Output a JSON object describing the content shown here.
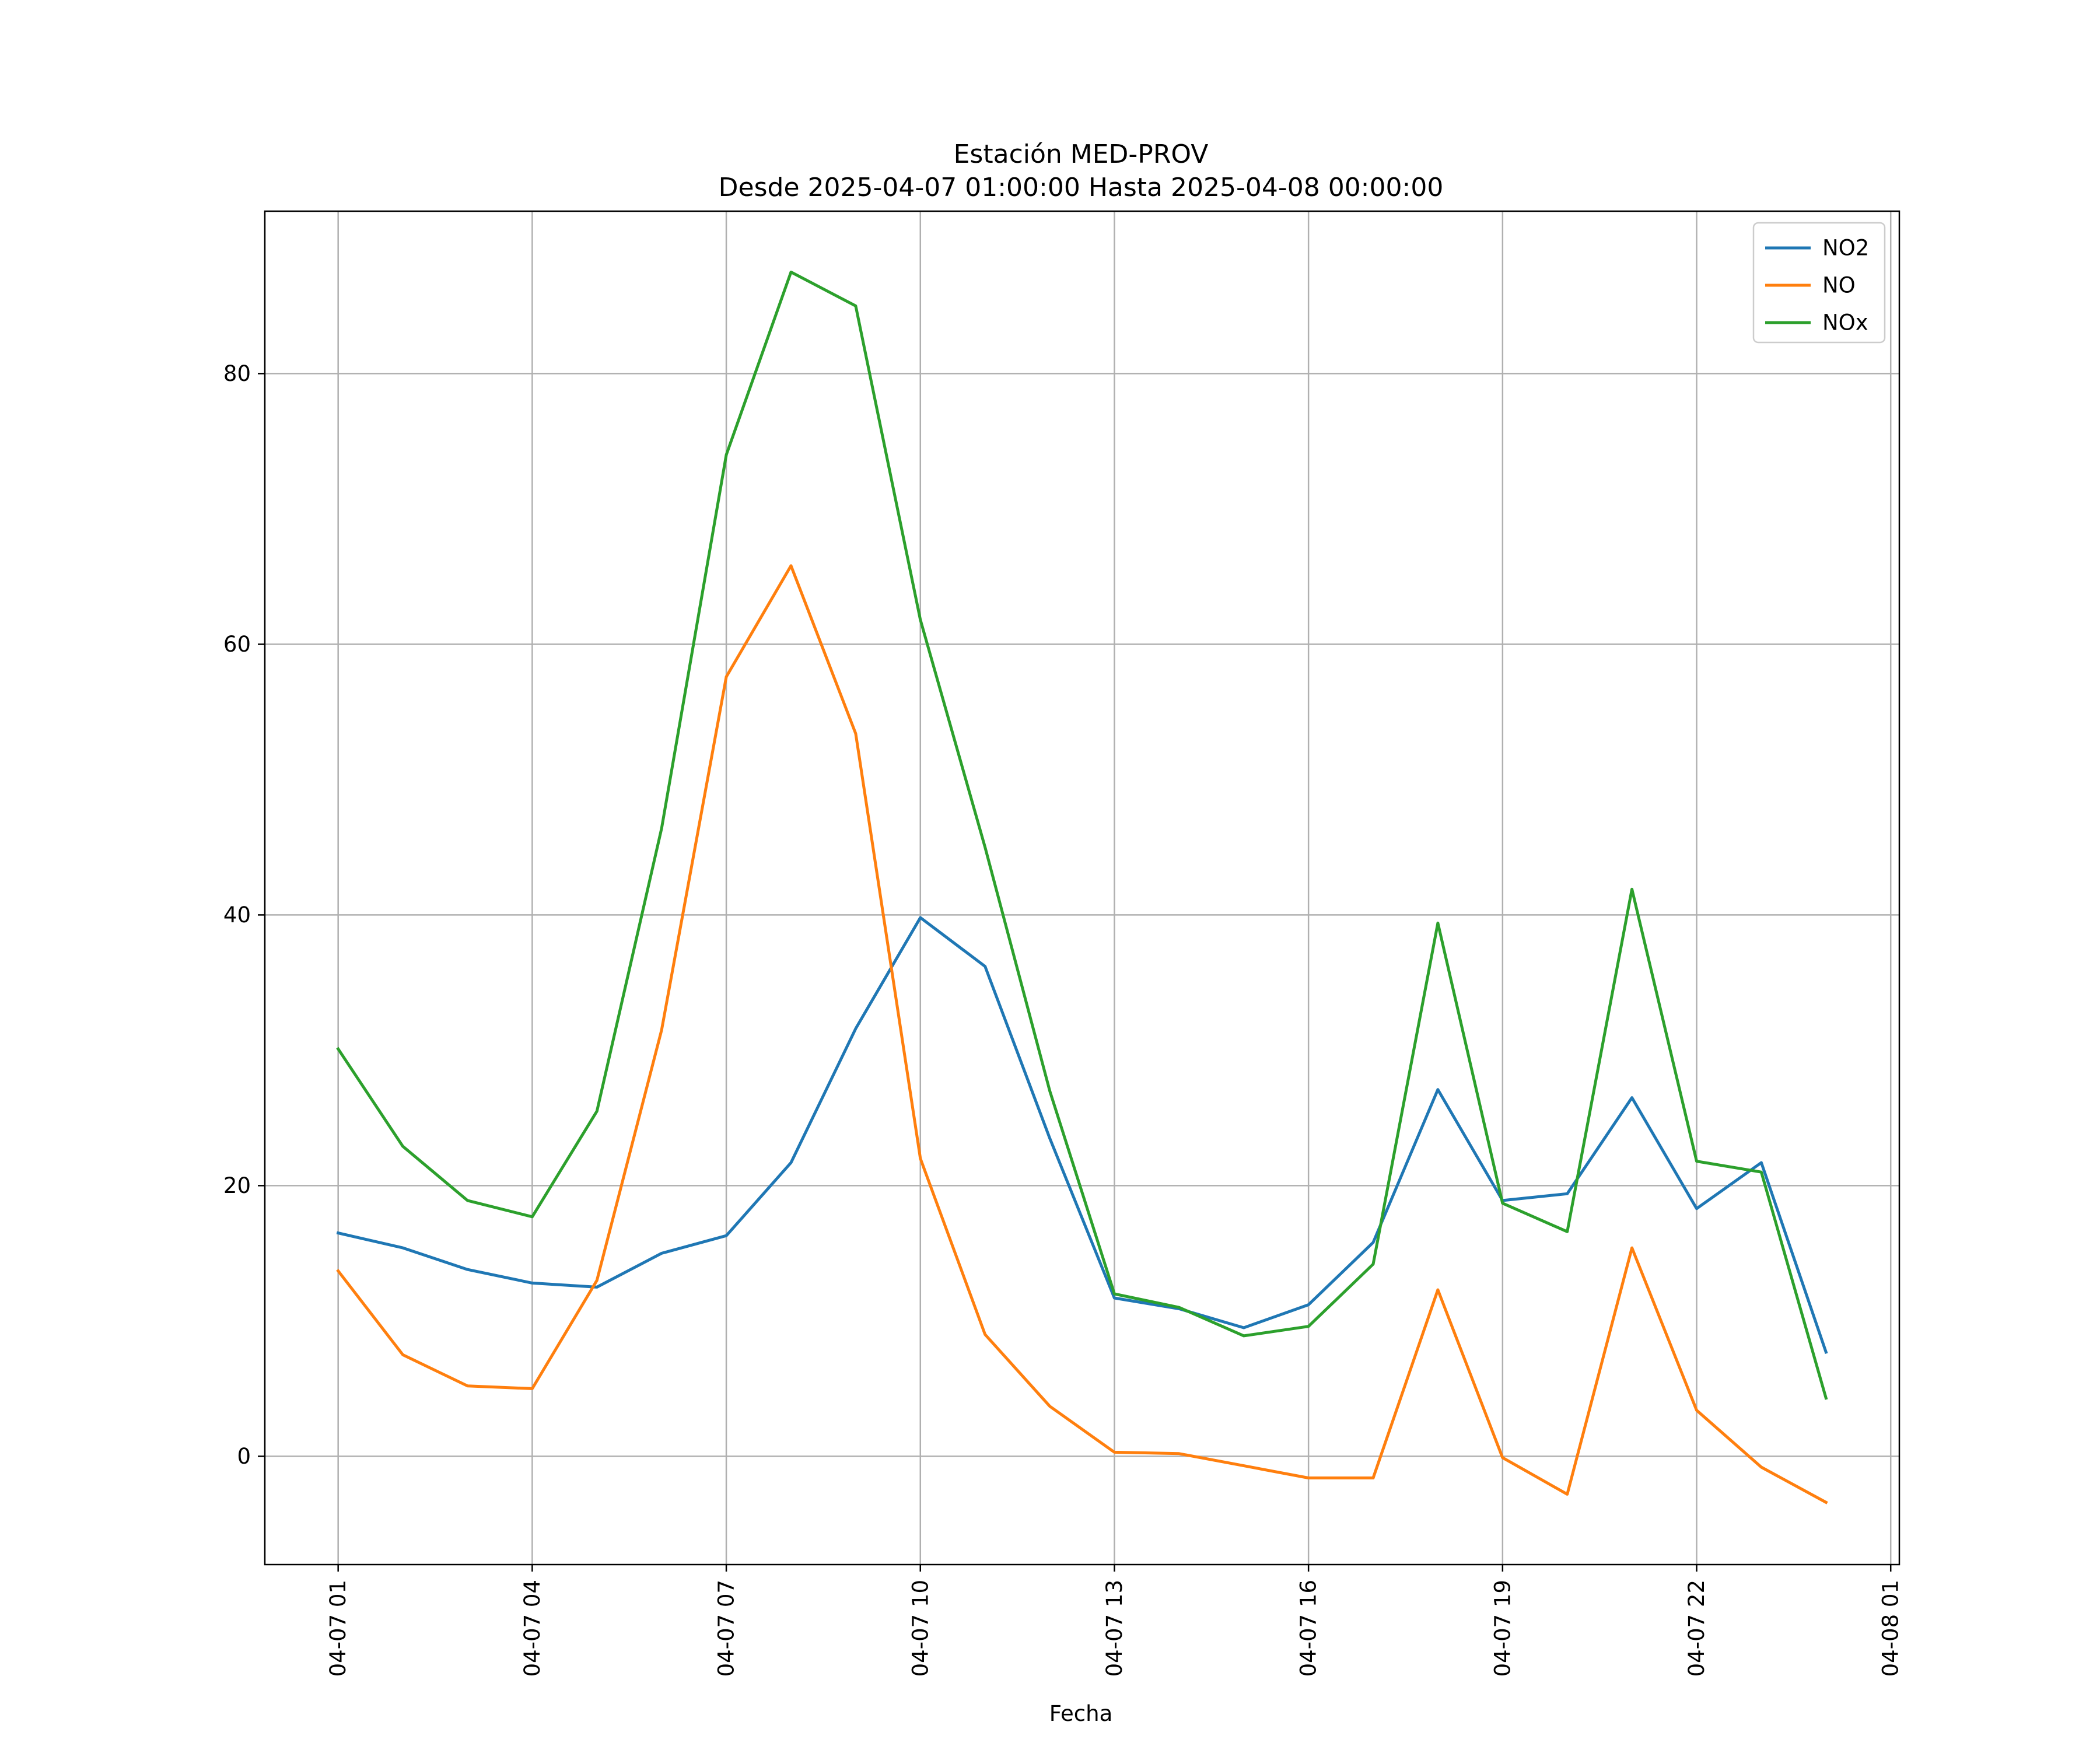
{
  "chart_data": {
    "type": "line",
    "title": "Estación MED-PROV",
    "subtitle": "Desde 2025-04-07 01:00:00 Hasta 2025-04-08 00:00:00",
    "xlabel": "Fecha",
    "ylabel": "",
    "x": [
      "2025-04-07 01:00",
      "2025-04-07 02:00",
      "2025-04-07 03:00",
      "2025-04-07 04:00",
      "2025-04-07 05:00",
      "2025-04-07 06:00",
      "2025-04-07 07:00",
      "2025-04-07 08:00",
      "2025-04-07 09:00",
      "2025-04-07 10:00",
      "2025-04-07 11:00",
      "2025-04-07 12:00",
      "2025-04-07 13:00",
      "2025-04-07 14:00",
      "2025-04-07 15:00",
      "2025-04-07 16:00",
      "2025-04-07 17:00",
      "2025-04-07 18:00",
      "2025-04-07 19:00",
      "2025-04-07 20:00",
      "2025-04-07 21:00",
      "2025-04-07 22:00",
      "2025-04-07 23:00",
      "2025-04-08 00:00"
    ],
    "xlim": [
      "2025-04-06 23:52",
      "2025-04-08 01:08"
    ],
    "ylim": [
      -8,
      92
    ],
    "xticks": [
      "2025-04-07 01:00",
      "2025-04-07 04:00",
      "2025-04-07 07:00",
      "2025-04-07 10:00",
      "2025-04-07 13:00",
      "2025-04-07 16:00",
      "2025-04-07 19:00",
      "2025-04-07 22:00",
      "2025-04-08 01:00"
    ],
    "xtick_labels": [
      "04-07 01",
      "04-07 04",
      "04-07 07",
      "04-07 10",
      "04-07 13",
      "04-07 16",
      "04-07 19",
      "04-07 22",
      "04-08 01"
    ],
    "yticks": [
      0,
      20,
      40,
      60,
      80
    ],
    "ytick_labels": [
      "0",
      "20",
      "40",
      "60",
      "80"
    ],
    "grid": true,
    "legend_position": "top-right",
    "series": [
      {
        "name": "NO2",
        "color": "#1f77b4",
        "values": [
          16.5,
          15.4,
          13.8,
          12.8,
          12.5,
          15.0,
          16.3,
          21.7,
          31.6,
          39.8,
          36.2,
          23.5,
          11.7,
          10.9,
          9.5,
          11.2,
          15.8,
          27.1,
          18.9,
          19.4,
          26.5,
          18.3,
          21.7,
          7.7
        ]
      },
      {
        "name": "NO",
        "color": "#ff7f0e",
        "values": [
          13.7,
          7.5,
          5.2,
          5.0,
          13.0,
          31.5,
          57.6,
          65.8,
          53.4,
          22.0,
          9.0,
          3.7,
          0.3,
          0.2,
          -0.7,
          -1.6,
          -1.6,
          12.3,
          -0.1,
          -2.8,
          15.4,
          3.4,
          -0.8,
          -3.4
        ]
      },
      {
        "name": "NOx",
        "color": "#2ca02c",
        "values": [
          30.1,
          22.9,
          18.9,
          17.7,
          25.5,
          46.4,
          74.0,
          87.5,
          85.0,
          61.8,
          45.0,
          27.0,
          12.0,
          11.0,
          8.9,
          9.6,
          14.2,
          39.4,
          18.7,
          16.6,
          41.9,
          21.8,
          21.0,
          4.3
        ]
      }
    ]
  }
}
